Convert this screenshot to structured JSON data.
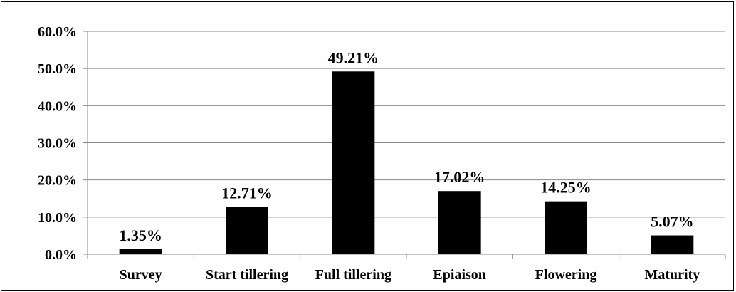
{
  "chart_data": {
    "type": "bar",
    "title": "",
    "xlabel": "",
    "ylabel": "",
    "categories": [
      "Survey",
      "Start tillering",
      "Full tillering",
      "Epiaison",
      "Flowering",
      "Maturity"
    ],
    "values": [
      1.35,
      12.71,
      49.21,
      17.02,
      14.25,
      5.07
    ],
    "data_labels": [
      "1.35%",
      "12.71%",
      "49.21%",
      "17.02%",
      "14.25%",
      "5.07%"
    ],
    "ylim": [
      0,
      60
    ],
    "yticks": [
      0,
      10,
      20,
      30,
      40,
      50,
      60
    ],
    "ytick_labels": [
      "0.0%",
      "10.0%",
      "20.0%",
      "30.0%",
      "40.0%",
      "50.0%",
      "60.0%"
    ],
    "grid": true,
    "legend": "none",
    "bar_color": "#000000",
    "grid_color": "#888888"
  }
}
